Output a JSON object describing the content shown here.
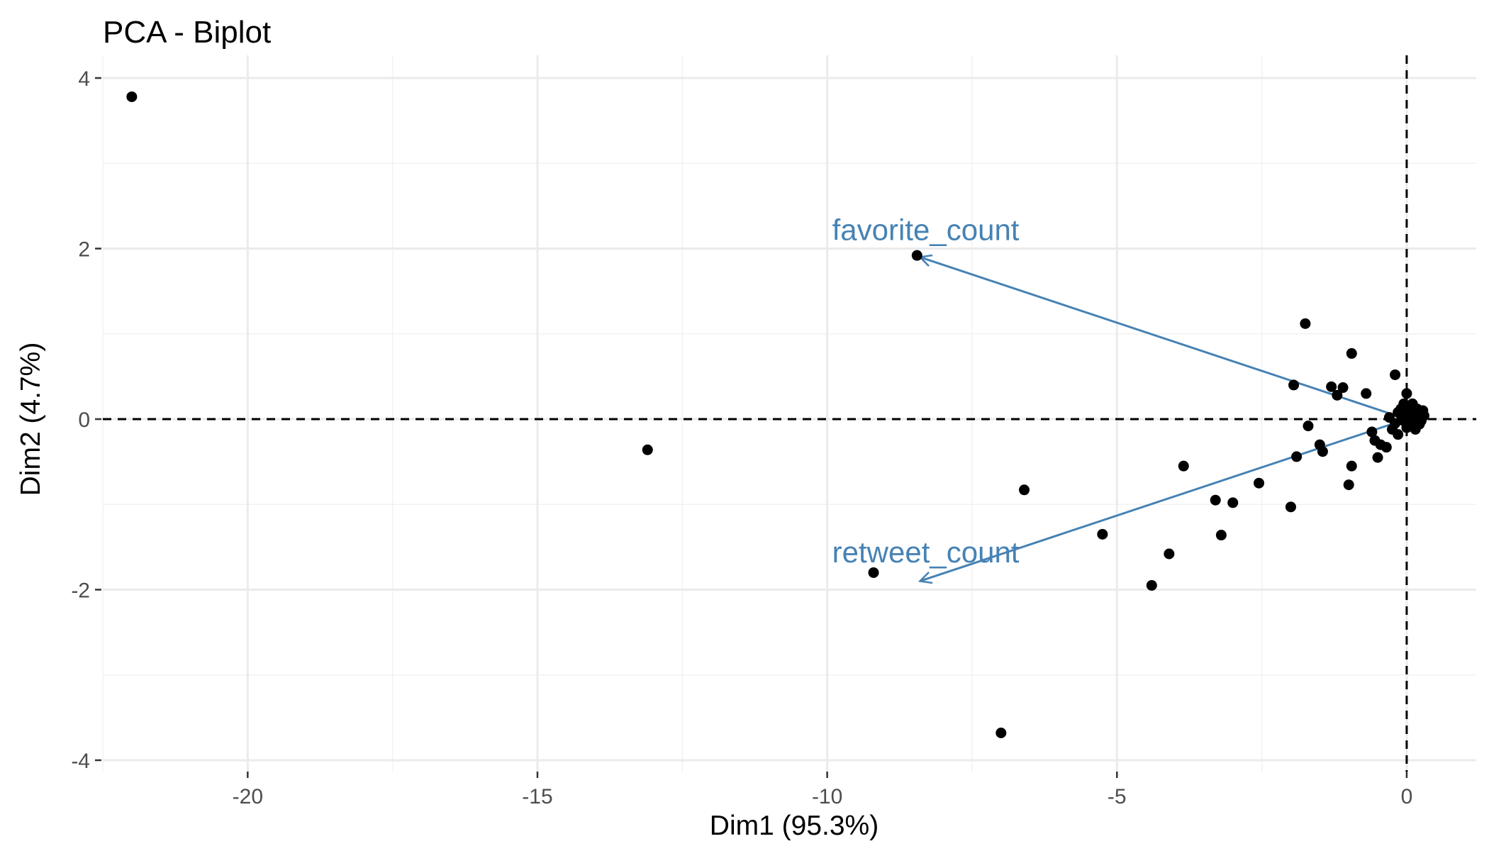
{
  "chart_data": {
    "type": "scatter",
    "title": "PCA - Biplot",
    "xlabel": "Dim1 (95.3%)",
    "ylabel": "Dim2 (4.7%)",
    "xlim": [
      -22.5,
      1.2
    ],
    "ylim": [
      -4.05,
      4.1
    ],
    "x_ticks": [
      -20,
      -15,
      -10,
      -5,
      0
    ],
    "x_tick_labels": [
      "-20",
      "-15",
      "-10",
      "-5",
      "0"
    ],
    "y_ticks": [
      -4,
      -2,
      0,
      2,
      4
    ],
    "y_tick_labels": [
      "-4",
      "-2",
      "0",
      "2",
      "4"
    ],
    "grid": true,
    "reference_lines": {
      "x": 0,
      "y": 0,
      "style": "dashed"
    },
    "point_color": "#000000",
    "arrow_color": "#4682B4",
    "points": [
      [
        -22.0,
        3.78
      ],
      [
        -13.1,
        -0.36
      ],
      [
        -8.45,
        1.92
      ],
      [
        -9.2,
        -1.8
      ],
      [
        -7.0,
        -3.68
      ],
      [
        -6.6,
        -0.83
      ],
      [
        -5.25,
        -1.35
      ],
      [
        -4.4,
        -1.95
      ],
      [
        -4.1,
        -1.58
      ],
      [
        -3.85,
        -0.55
      ],
      [
        -3.3,
        -0.95
      ],
      [
        -3.2,
        -1.36
      ],
      [
        -3.0,
        -0.98
      ],
      [
        -2.55,
        -0.75
      ],
      [
        -2.0,
        -1.03
      ],
      [
        -1.95,
        0.4
      ],
      [
        -1.9,
        -0.44
      ],
      [
        -1.75,
        1.12
      ],
      [
        -1.7,
        -0.08
      ],
      [
        -1.5,
        -0.3
      ],
      [
        -1.45,
        -0.38
      ],
      [
        -1.3,
        0.38
      ],
      [
        -1.2,
        0.28
      ],
      [
        -1.1,
        0.37
      ],
      [
        -0.95,
        0.77
      ],
      [
        -0.95,
        -0.55
      ],
      [
        -1.0,
        -0.77
      ],
      [
        -0.7,
        0.3
      ],
      [
        -0.6,
        -0.15
      ],
      [
        -0.55,
        -0.25
      ],
      [
        -0.5,
        -0.45
      ],
      [
        -0.45,
        -0.3
      ],
      [
        -0.35,
        -0.33
      ],
      [
        -0.3,
        0.02
      ],
      [
        -0.25,
        -0.12
      ],
      [
        -0.2,
        0.52
      ],
      [
        -0.15,
        -0.18
      ],
      [
        -0.1,
        0.05
      ],
      [
        -0.05,
        0.18
      ],
      [
        0.0,
        0.3
      ],
      [
        0.05,
        0.1
      ],
      [
        0.1,
        -0.05
      ],
      [
        0.0,
        -0.1
      ],
      [
        0.15,
        0.02
      ],
      [
        0.2,
        0.08
      ],
      [
        0.25,
        -0.02
      ],
      [
        0.3,
        0.04
      ],
      [
        -0.05,
        -0.02
      ],
      [
        0.08,
        0.15
      ],
      [
        0.12,
        -0.08
      ],
      [
        0.18,
        0.12
      ],
      [
        -0.1,
        0.12
      ],
      [
        0.22,
        -0.06
      ],
      [
        0.05,
        0.02
      ],
      [
        -0.2,
        -0.05
      ],
      [
        0.28,
        0.1
      ],
      [
        0.02,
        0.08
      ],
      [
        -0.15,
        0.08
      ],
      [
        0.1,
        0.18
      ],
      [
        0.15,
        -0.12
      ]
    ],
    "arrows": [
      {
        "name": "favorite_count",
        "x": -8.4,
        "y": 1.9
      },
      {
        "name": "retweet_count",
        "x": -8.4,
        "y": -1.9
      }
    ],
    "labels": [
      {
        "text": "favorite_count",
        "x": -8.3,
        "y": 2.1
      },
      {
        "text": "retweet_count",
        "x": -8.3,
        "y": -1.68
      }
    ]
  }
}
